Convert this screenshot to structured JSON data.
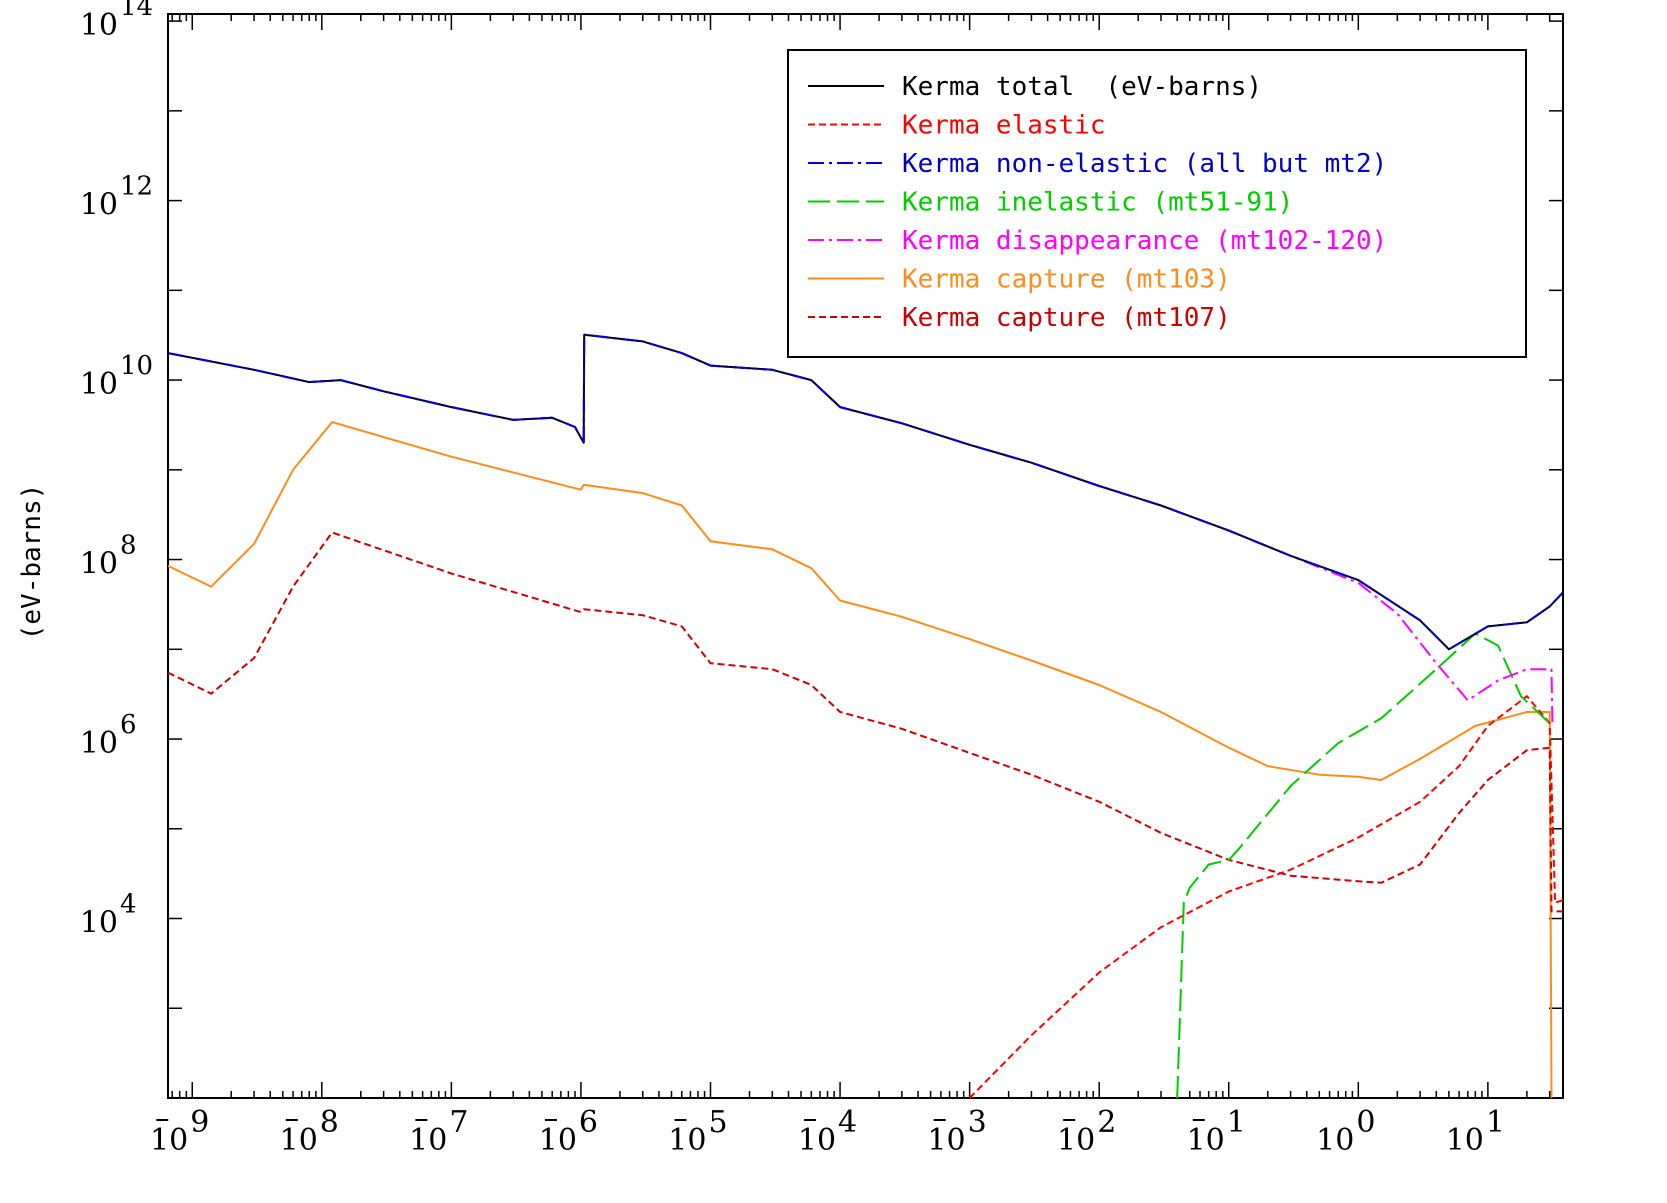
{
  "chart_data": {
    "type": "line",
    "title": "",
    "xlabel": "",
    "ylabel": "(eV-barns)",
    "x_scale": "log",
    "y_scale": "log",
    "xlim": [
      6.5e-10,
      38
    ],
    "ylim": [
      100,
      120000000000000.0
    ],
    "x_ticks": [
      "10^-9",
      "10^-8",
      "10^-7",
      "10^-6",
      "10^-5",
      "10^-4",
      "10^-3",
      "10^-2",
      "10^-1",
      "10^0",
      "10^1"
    ],
    "y_ticks": [
      "10^4",
      "10^6",
      "10^8",
      "10^10",
      "10^12",
      "10^14"
    ],
    "grid": false,
    "legend_position": "top-right",
    "series": [
      {
        "name": "Kerma total  (eV-barns)",
        "color": "#000000",
        "dash": "solid",
        "points": [
          [
            6.5e-10,
            20000000000.0
          ],
          [
            3e-09,
            13000000000.0
          ],
          [
            8e-09,
            9500000000.0
          ],
          [
            1.4e-08,
            10000000000.0
          ],
          [
            3e-08,
            7500000000.0
          ],
          [
            1e-07,
            5000000000.0
          ],
          [
            3e-07,
            3600000000.0
          ],
          [
            6e-07,
            3800000000.0
          ],
          [
            9e-07,
            3000000000.0
          ],
          [
            1.05e-06,
            2000000000.0
          ],
          [
            1.06e-06,
            32000000000.0
          ],
          [
            3e-06,
            27000000000.0
          ],
          [
            6e-06,
            20000000000.0
          ],
          [
            1e-05,
            14500000000.0
          ],
          [
            3e-05,
            13000000000.0
          ],
          [
            6e-05,
            10000000000.0
          ],
          [
            0.0001,
            5000000000.0
          ],
          [
            0.0003,
            3300000000.0
          ],
          [
            0.001,
            1900000000.0
          ],
          [
            0.003,
            1200000000.0
          ],
          [
            0.01,
            660000000.0
          ],
          [
            0.03,
            400000000.0
          ],
          [
            0.1,
            210000000.0
          ],
          [
            0.3,
            110000000.0
          ],
          [
            1,
            59000000.0
          ],
          [
            3,
            21000000.0
          ],
          [
            5,
            10000000.0
          ],
          [
            10,
            18000000.0
          ],
          [
            20,
            20000000.0
          ],
          [
            30,
            30000000.0
          ],
          [
            38,
            43000000.0
          ]
        ]
      },
      {
        "name": "Kerma elastic",
        "color": "#ff0000",
        "dash": "short",
        "points": [
          [
            0.001,
            100
          ],
          [
            0.003,
            500
          ],
          [
            0.01,
            2500
          ],
          [
            0.03,
            8000
          ],
          [
            0.1,
            20000.0
          ],
          [
            0.3,
            35000.0
          ],
          [
            1,
            80000.0
          ],
          [
            3,
            200000.0
          ],
          [
            6,
            500000.0
          ],
          [
            10,
            1400000.0
          ],
          [
            20,
            3000000.0
          ],
          [
            30,
            1500000.0
          ],
          [
            33,
            15000.0
          ],
          [
            38,
            16000.0
          ]
        ]
      },
      {
        "name": "Kerma non-elastic (all but mt2)",
        "color": "#0000cc",
        "dash": "dashdot",
        "points": [
          [
            6.5e-10,
            20000000000.0
          ],
          [
            3e-09,
            13000000000.0
          ],
          [
            8e-09,
            9500000000.0
          ],
          [
            1.4e-08,
            10000000000.0
          ],
          [
            3e-08,
            7500000000.0
          ],
          [
            1e-07,
            5000000000.0
          ],
          [
            3e-07,
            3600000000.0
          ],
          [
            6e-07,
            3800000000.0
          ],
          [
            9e-07,
            3000000000.0
          ],
          [
            1.05e-06,
            2000000000.0
          ],
          [
            1.06e-06,
            32000000000.0
          ],
          [
            3e-06,
            27000000000.0
          ],
          [
            6e-06,
            20000000000.0
          ],
          [
            1e-05,
            14500000000.0
          ],
          [
            3e-05,
            13000000000.0
          ],
          [
            6e-05,
            10000000000.0
          ],
          [
            0.0001,
            5000000000.0
          ],
          [
            0.0003,
            3300000000.0
          ],
          [
            0.001,
            1900000000.0
          ],
          [
            0.003,
            1200000000.0
          ],
          [
            0.01,
            660000000.0
          ],
          [
            0.03,
            400000000.0
          ],
          [
            0.1,
            210000000.0
          ],
          [
            0.3,
            110000000.0
          ],
          [
            1,
            59000000.0
          ],
          [
            3,
            21000000.0
          ],
          [
            5,
            10000000.0
          ],
          [
            10,
            18000000.0
          ],
          [
            20,
            20000000.0
          ],
          [
            30,
            30000000.0
          ],
          [
            38,
            43000000.0
          ]
        ]
      },
      {
        "name": "Kerma inelastic (mt51-91)",
        "color": "#00cc00",
        "dash": "longdash",
        "points": [
          [
            0.04,
            100
          ],
          [
            0.045,
            15000.0
          ],
          [
            0.05,
            22000.0
          ],
          [
            0.07,
            40000.0
          ],
          [
            0.1,
            45000.0
          ],
          [
            0.12,
            60000.0
          ],
          [
            0.3,
            300000.0
          ],
          [
            0.7,
            900000.0
          ],
          [
            1.5,
            1700000.0
          ],
          [
            4,
            6000000.0
          ],
          [
            8,
            15000000.0
          ],
          [
            12,
            11000000.0
          ],
          [
            18,
            3000000.0
          ],
          [
            30,
            1500000.0
          ]
        ]
      },
      {
        "name": "Kerma disappearance (mt102-120)",
        "color": "#ff00ff",
        "dash": "dashdot",
        "points": [
          [
            6.5e-10,
            20000000000.0
          ],
          [
            3e-09,
            13000000000.0
          ],
          [
            8e-09,
            9500000000.0
          ],
          [
            1.4e-08,
            10000000000.0
          ],
          [
            3e-08,
            7500000000.0
          ],
          [
            1e-07,
            5000000000.0
          ],
          [
            3e-07,
            3600000000.0
          ],
          [
            6e-07,
            3800000000.0
          ],
          [
            9e-07,
            3000000000.0
          ],
          [
            1.05e-06,
            2000000000.0
          ],
          [
            1.06e-06,
            32000000000.0
          ],
          [
            3e-06,
            27000000000.0
          ],
          [
            6e-06,
            20000000000.0
          ],
          [
            1e-05,
            14500000000.0
          ],
          [
            3e-05,
            13000000000.0
          ],
          [
            6e-05,
            10000000000.0
          ],
          [
            0.0001,
            5000000000.0
          ],
          [
            0.0003,
            3300000000.0
          ],
          [
            0.001,
            1900000000.0
          ],
          [
            0.003,
            1200000000.0
          ],
          [
            0.01,
            660000000.0
          ],
          [
            0.03,
            400000000.0
          ],
          [
            0.1,
            210000000.0
          ],
          [
            0.3,
            110000000.0
          ],
          [
            1,
            55000000.0
          ],
          [
            2,
            25000000.0
          ],
          [
            4,
            7000000.0
          ],
          [
            7,
            2700000.0
          ],
          [
            12,
            4500000.0
          ],
          [
            20,
            6000000.0
          ],
          [
            31,
            6000000.0
          ],
          [
            31.5,
            1500000.0
          ]
        ]
      },
      {
        "name": "Kerma capture (mt103)",
        "color": "#ff8c1a",
        "dash": "solid",
        "points": [
          [
            6.5e-10,
            85000000.0
          ],
          [
            1.4e-09,
            50000000.0
          ],
          [
            3e-09,
            150000000.0
          ],
          [
            6e-09,
            1000000000.0
          ],
          [
            1.2e-08,
            3400000000.0
          ],
          [
            1e-07,
            1400000000.0
          ],
          [
            1e-06,
            600000000.0
          ],
          [
            1.05e-06,
            680000000.0
          ],
          [
            3e-06,
            550000000.0
          ],
          [
            6e-06,
            400000000.0
          ],
          [
            1e-05,
            160000000.0
          ],
          [
            3e-05,
            130000000.0
          ],
          [
            6e-05,
            80000000.0
          ],
          [
            0.0001,
            35000000.0
          ],
          [
            0.0003,
            23000000.0
          ],
          [
            0.001,
            13000000.0
          ],
          [
            0.003,
            7500000.0
          ],
          [
            0.01,
            4000000.0
          ],
          [
            0.03,
            2000000.0
          ],
          [
            0.1,
            800000.0
          ],
          [
            0.2,
            500000.0
          ],
          [
            0.5,
            400000.0
          ],
          [
            1,
            380000.0
          ],
          [
            1.5,
            350000.0
          ],
          [
            3,
            600000.0
          ],
          [
            8,
            1400000.0
          ],
          [
            20,
            2000000.0
          ],
          [
            30,
            2000000.0
          ],
          [
            31,
            100.0
          ]
        ]
      },
      {
        "name": "Kerma capture (mt107)",
        "color": "#cc0000",
        "dash": "short",
        "points": [
          [
            6.5e-10,
            5500000.0
          ],
          [
            1.4e-09,
            3200000.0
          ],
          [
            3e-09,
            8000000.0
          ],
          [
            6e-09,
            50000000.0
          ],
          [
            1.2e-08,
            200000000.0
          ],
          [
            1e-07,
            70000000.0
          ],
          [
            1e-06,
            26000000.0
          ],
          [
            1.05e-06,
            28000000.0
          ],
          [
            3e-06,
            24000000.0
          ],
          [
            6e-06,
            18000000.0
          ],
          [
            1e-05,
            7000000.0
          ],
          [
            3e-05,
            6000000.0
          ],
          [
            6e-05,
            4000000.0
          ],
          [
            0.0001,
            2000000.0
          ],
          [
            0.0003,
            1300000.0
          ],
          [
            0.001,
            700000.0
          ],
          [
            0.003,
            400000.0
          ],
          [
            0.01,
            200000.0
          ],
          [
            0.03,
            90000.0
          ],
          [
            0.1,
            45000.0
          ],
          [
            0.3,
            30000.0
          ],
          [
            1,
            26000.0
          ],
          [
            1.5,
            25000.0
          ],
          [
            3,
            40000.0
          ],
          [
            6,
            150000.0
          ],
          [
            10,
            350000.0
          ],
          [
            20,
            750000.0
          ],
          [
            30,
            800000.0
          ],
          [
            31,
            12000.0
          ],
          [
            38,
            12000.0
          ]
        ]
      }
    ]
  }
}
